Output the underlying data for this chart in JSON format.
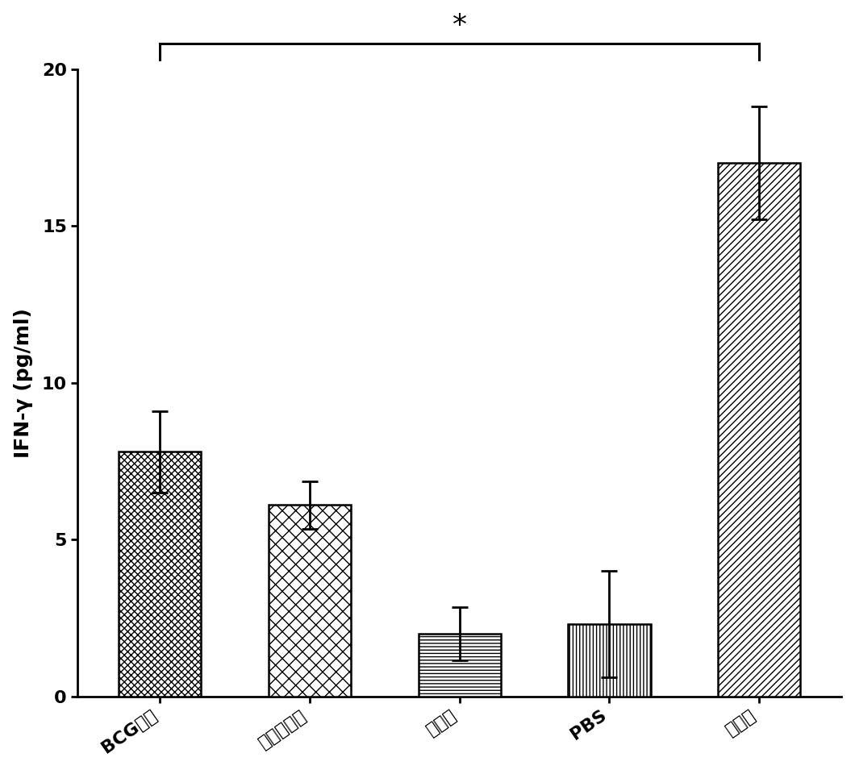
{
  "categories": [
    "BCG蛋白",
    "肿瘤标志物",
    "连接臂",
    "PBS",
    "组装体"
  ],
  "values": [
    7.8,
    6.1,
    2.0,
    2.3,
    17.0
  ],
  "errors": [
    1.3,
    0.75,
    0.85,
    1.7,
    1.8
  ],
  "bar_color": "#ffffff",
  "bar_edgecolor": "#000000",
  "ylabel": "IFN-γ (pg/ml)",
  "ylim": [
    0,
    20
  ],
  "yticks": [
    0,
    5,
    10,
    15,
    20
  ],
  "sig_text": "*",
  "tick_fontsize": 16,
  "ylabel_fontsize": 18,
  "bar_width": 0.55
}
